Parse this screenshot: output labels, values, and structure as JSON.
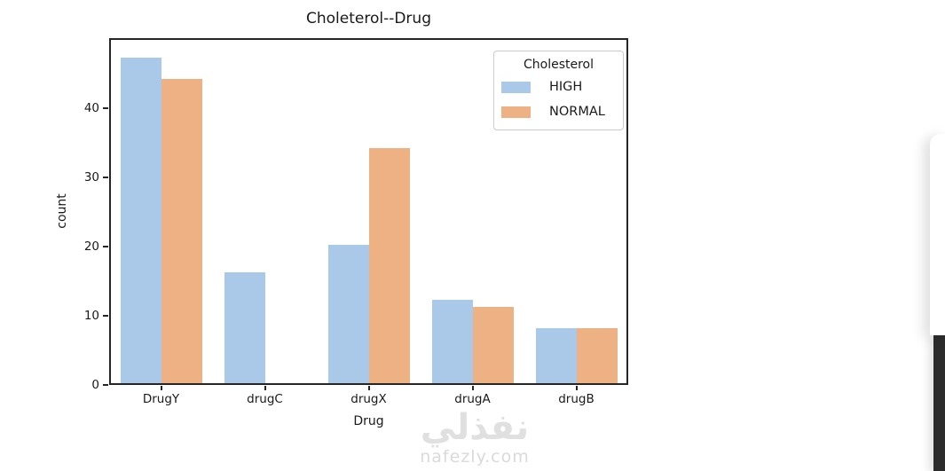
{
  "chart_data": {
    "type": "bar",
    "title": "Choleterol--Drug",
    "xlabel": "Drug",
    "ylabel": "count",
    "categories": [
      "DrugY",
      "drugC",
      "drugX",
      "drugA",
      "drugB"
    ],
    "series": [
      {
        "name": "HIGH",
        "color": "#aac8e8",
        "values": [
          47,
          16,
          20,
          12,
          8
        ]
      },
      {
        "name": "NORMAL",
        "color": "#eeb183",
        "values": [
          44,
          0,
          34,
          11,
          8
        ]
      }
    ],
    "yticks": [
      0,
      10,
      20,
      30,
      40
    ],
    "ylim": [
      0,
      50
    ],
    "grid": false,
    "legend": {
      "title": "Cholesterol",
      "position": "upper right"
    }
  },
  "watermark": {
    "logo_text": "نفذلي",
    "site_text": "nafezly.com"
  },
  "colors": {
    "spine": "#262626",
    "text": "#1a1a1a",
    "legend_border": "#cccccc",
    "bar_high": "#aac8e8",
    "bar_normal": "#eeb183",
    "dark_panel": "#2c2c2c",
    "watermark": "#e0e0e0"
  }
}
